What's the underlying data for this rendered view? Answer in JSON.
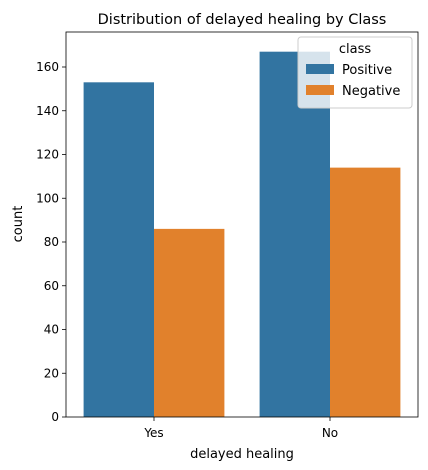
{
  "chart_data": {
    "type": "bar",
    "title": "Distribution of delayed healing by Class",
    "xlabel": "delayed healing",
    "ylabel": "count",
    "categories": [
      "Yes",
      "No"
    ],
    "series": [
      {
        "name": "Positive",
        "values": [
          153,
          167
        ],
        "color": "#3274a1"
      },
      {
        "name": "Negative",
        "values": [
          86,
          114
        ],
        "color": "#e1812c"
      }
    ],
    "ylim": [
      0,
      176
    ],
    "yticks": [
      0,
      20,
      40,
      60,
      80,
      100,
      120,
      140,
      160
    ],
    "legend": {
      "title": "class",
      "placement": "top-right"
    },
    "grid": false
  }
}
